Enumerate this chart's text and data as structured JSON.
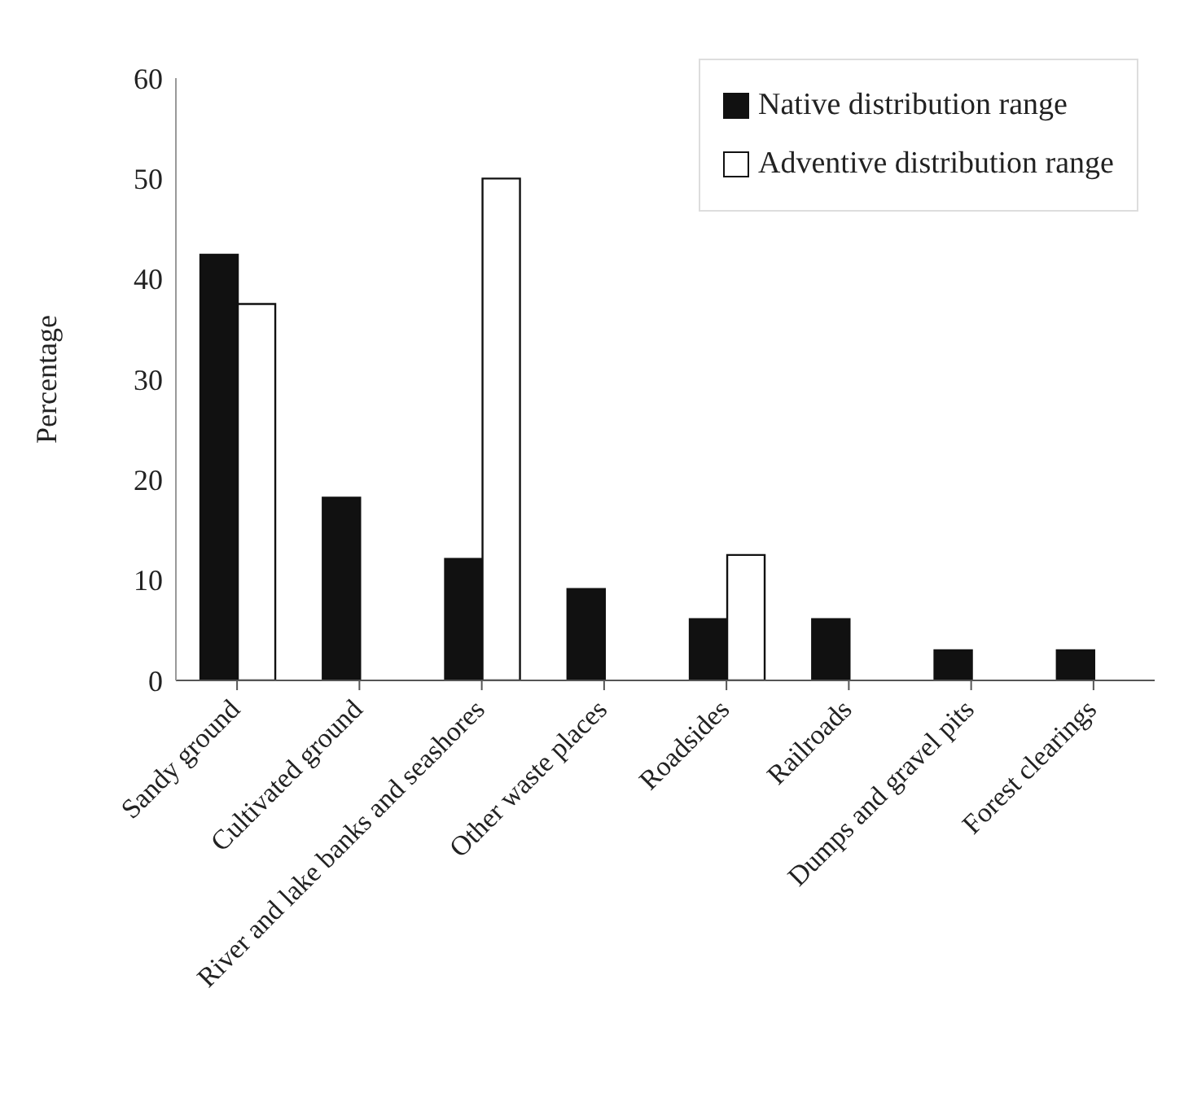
{
  "chart_data": {
    "type": "bar",
    "ylabel": "Percentage",
    "categories": [
      "Sandy ground",
      "Cultivated ground",
      "River and lake banks and seashores",
      "Other waste places",
      "Roadsides",
      "Railroads",
      "Dumps and gravel pits",
      "Forest clearings"
    ],
    "series": [
      {
        "name": "Native distribution range",
        "color": "#111111",
        "values": [
          42.4,
          18.2,
          12.1,
          9.1,
          6.1,
          6.1,
          3.0,
          3.0
        ]
      },
      {
        "name": "Adventive distribution range",
        "color": "#ffffff",
        "values": [
          37.5,
          0,
          50,
          0,
          12.5,
          0,
          0,
          0
        ]
      }
    ],
    "ylim": [
      0,
      60
    ],
    "yticks": [
      0,
      10,
      20,
      30,
      40,
      50,
      60
    ],
    "legend": "top right"
  }
}
